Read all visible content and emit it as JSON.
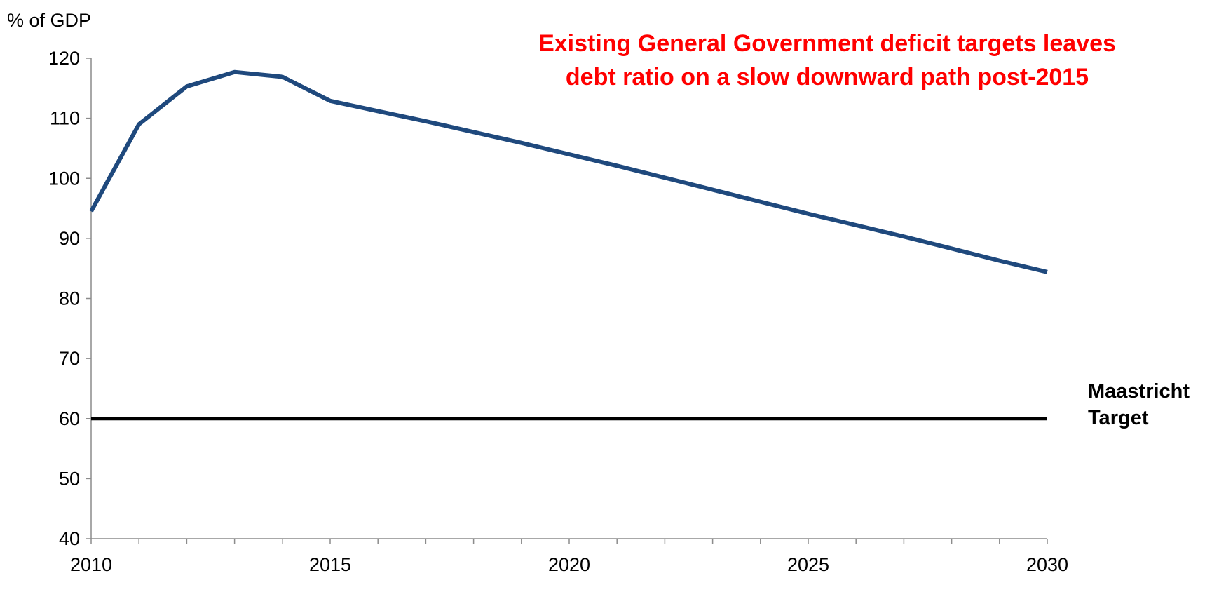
{
  "chart_data": {
    "type": "line",
    "title": "",
    "ylabel": "% of GDP",
    "xlabel": "",
    "xlim": [
      2010,
      2030
    ],
    "ylim": [
      40,
      120
    ],
    "x_ticks": [
      2010,
      2015,
      2020,
      2025,
      2030
    ],
    "y_ticks": [
      40,
      50,
      60,
      70,
      80,
      90,
      100,
      110,
      120
    ],
    "x_minor_step": 1,
    "grid": false,
    "legend": "none",
    "series": [
      {
        "color": "#1f497d",
        "x": [
          2010,
          2011,
          2012,
          2013,
          2014,
          2015,
          2016,
          2017,
          2018,
          2019,
          2020,
          2021,
          2022,
          2023,
          2024,
          2025,
          2026,
          2027,
          2028,
          2029,
          2030
        ],
        "values": [
          94.5,
          109.0,
          115.3,
          117.7,
          116.9,
          112.9,
          111.2,
          109.5,
          107.7,
          105.9,
          104.0,
          102.1,
          100.1,
          98.1,
          96.1,
          94.1,
          92.2,
          90.3,
          88.3,
          86.3,
          84.4
        ]
      }
    ],
    "reference_lines": [
      {
        "label_lines": [
          "Maastricht",
          "Target"
        ],
        "value": 60,
        "color": "#000000"
      }
    ],
    "annotation": {
      "lines": [
        "Existing General Government deficit targets leaves",
        "debt ratio on a slow downward path post-2015"
      ],
      "color": "#ff0000"
    }
  }
}
